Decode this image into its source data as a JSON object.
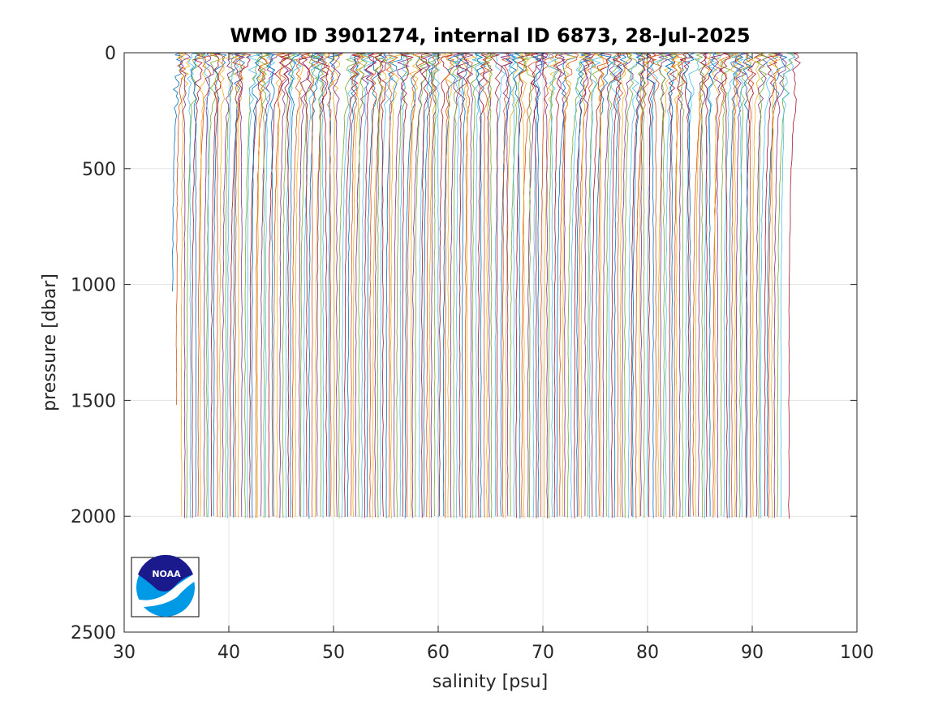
{
  "chart_data": {
    "type": "line",
    "title": "WMO ID 3901274, internal ID 6873, 28-Jul-2025",
    "xlabel": "salinity [psu]",
    "ylabel": "pressure [dbar]",
    "xlim": [
      30,
      100
    ],
    "ylim": [
      0,
      2500
    ],
    "y_reversed": true,
    "xticks": [
      "30",
      "40",
      "50",
      "60",
      "70",
      "80",
      "90",
      "100"
    ],
    "yticks": [
      "0",
      "500",
      "1000",
      "1500",
      "2000",
      "2500"
    ],
    "grid": true,
    "series_count": 224,
    "profile_offset_per_series": 0.26,
    "first_profile": {
      "surface_salinity": 35.3,
      "deep_salinity": 34.6,
      "max_pressure": 1030
    },
    "second_profile": {
      "surface_salinity": 35.5,
      "deep_salinity": 35.0,
      "max_pressure": 1520
    },
    "typical_profile": {
      "surface_salinity_anomaly": 0.6,
      "deep_salinity": 35.5,
      "max_pressure": 2010
    },
    "last_profile": {
      "surface_salinity": 94.6,
      "deep_salinity": 93.5,
      "max_pressure": 2010
    },
    "series_colors": [
      "#0072bd",
      "#d95319",
      "#edb120",
      "#7e2f8e",
      "#77ac30",
      "#4dbeee",
      "#a2142f"
    ]
  },
  "logo": {
    "label": "NOAA",
    "colors": {
      "navy": "#1a1a8c",
      "sky": "#0099e6",
      "white": "#ffffff"
    }
  }
}
